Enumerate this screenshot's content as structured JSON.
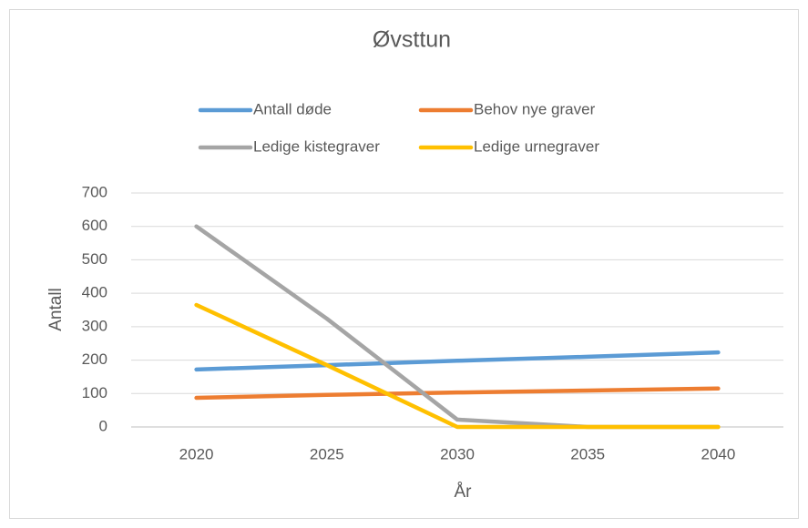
{
  "chart_data": {
    "type": "line",
    "title": "Øvsttun",
    "x_label": "År",
    "y_label": "Antall",
    "categories": [
      "2020",
      "2025",
      "2030",
      "2035",
      "2040"
    ],
    "series": [
      {
        "name": "Antall døde",
        "color": "#5b9bd5",
        "values": [
          172,
          185,
          198,
          210,
          223
        ]
      },
      {
        "name": "Behov nye graver",
        "color": "#ed7d31",
        "values": [
          87,
          96,
          103,
          109,
          115
        ]
      },
      {
        "name": "Ledige kistegraver",
        "color": "#a5a5a5",
        "values": [
          600,
          324,
          22,
          0,
          0
        ]
      },
      {
        "name": "Ledige urnegraver",
        "color": "#ffc000",
        "values": [
          365,
          185,
          0,
          0,
          0
        ]
      }
    ],
    "ylim": [
      0,
      700
    ],
    "yticks": [
      0,
      100,
      200,
      300,
      400,
      500,
      600,
      700
    ],
    "grid": true,
    "legend": "top"
  }
}
